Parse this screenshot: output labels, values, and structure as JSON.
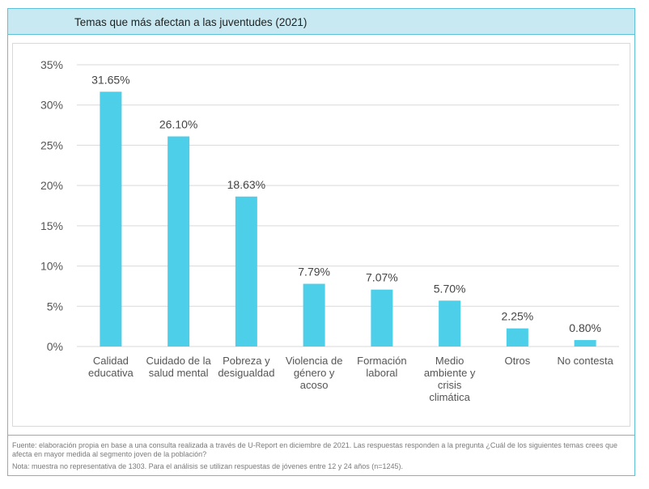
{
  "title": "Temas que más afectan a las juventudes (2021)",
  "footer": {
    "source": "Fuente: elaboración propia en base a una consulta realizada a través de U-Report en diciembre de 2021. Las respuestas responden a la pregunta ¿Cuál de los siguientes temas crees que afecta en mayor medida al segmento joven de la población?",
    "note": "Nota: muestra no representativa de 1303. Para el análisis se utilizan respuestas de jóvenes entre 12 y 24 años (n=1245)."
  },
  "colors": {
    "bar": "#4dcfe9",
    "grid": "#d9d9d9",
    "accent_border": "#5fc1d6",
    "title_bg": "#c8e9f1"
  },
  "chart_data": {
    "type": "bar",
    "title": "Temas que más afectan a las juventudes (2021)",
    "categories": [
      [
        "Calidad",
        "educativa"
      ],
      [
        "Cuidado de la",
        "salud mental"
      ],
      [
        "Pobreza y",
        "desigualdad"
      ],
      [
        "Violencia de",
        "género y",
        "acoso"
      ],
      [
        "Formación",
        "laboral"
      ],
      [
        "Medio",
        "ambiente y",
        "crisis",
        "climática"
      ],
      [
        "Otros"
      ],
      [
        "No contesta"
      ]
    ],
    "values": [
      31.65,
      26.1,
      18.63,
      7.79,
      7.07,
      5.7,
      2.25,
      0.8
    ],
    "value_labels": [
      "31.65%",
      "26.10%",
      "18.63%",
      "7.79%",
      "7.07%",
      "5.70%",
      "2.25%",
      "0.80%"
    ],
    "yticks": [
      0,
      5,
      10,
      15,
      20,
      25,
      30,
      35
    ],
    "ytick_labels": [
      "0%",
      "5%",
      "10%",
      "15%",
      "20%",
      "25%",
      "30%",
      "35%"
    ],
    "ylim": [
      0,
      35
    ],
    "xlabel": "",
    "ylabel": "",
    "grid": true,
    "legend": "none"
  }
}
